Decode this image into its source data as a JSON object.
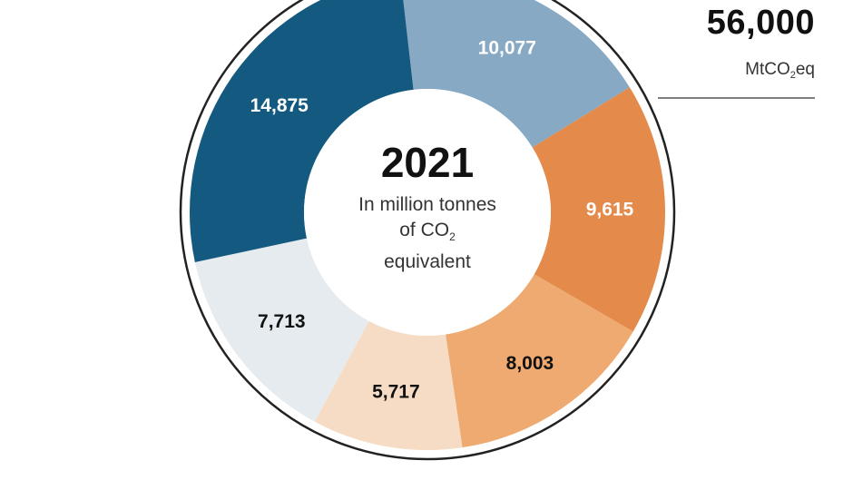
{
  "chart_data": {
    "type": "pie",
    "style": "donut",
    "total_value": "56,000",
    "total_unit_prefix": "MtCO",
    "total_unit_sub": "2",
    "total_unit_suffix": "eq",
    "center": {
      "year": "2021",
      "line1": "In million tonnes",
      "line2_prefix": "of CO",
      "line2_sub": "2",
      "line3": "equivalent"
    },
    "segments": [
      {
        "label": "10,077",
        "value": 10077,
        "color": "#87a9c4",
        "label_color": "#ffffff"
      },
      {
        "label": "9,615",
        "value": 9615,
        "color": "#e48a4a",
        "label_color": "#ffffff"
      },
      {
        "label": "8,003",
        "value": 8003,
        "color": "#eeaa70",
        "label_color": "#111111"
      },
      {
        "label": "5,717",
        "value": 5717,
        "color": "#f6dcc4",
        "label_color": "#111111"
      },
      {
        "label": "7,713",
        "value": 7713,
        "color": "#e5ebef",
        "label_color": "#111111"
      },
      {
        "label": "14,875",
        "value": 14875,
        "color": "#145a80",
        "label_color": "#ffffff"
      }
    ]
  }
}
